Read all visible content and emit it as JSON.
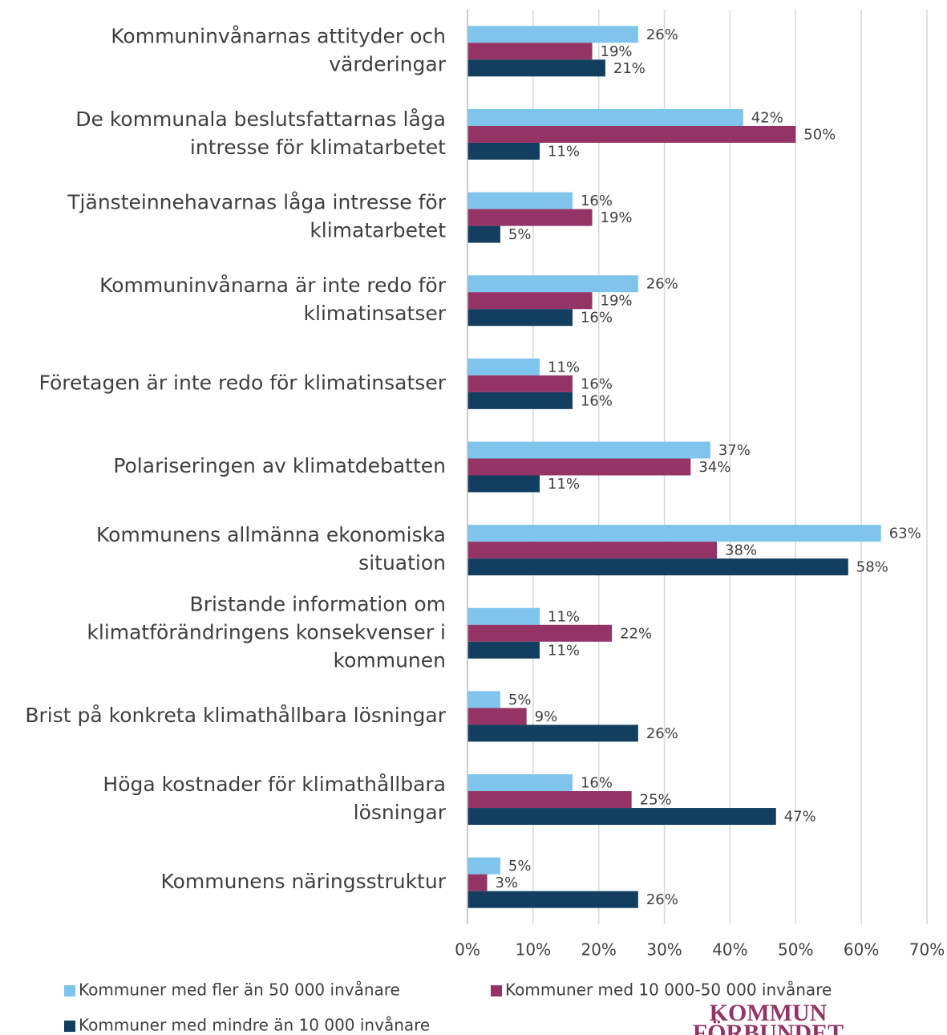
{
  "chart_data": {
    "type": "bar",
    "orientation": "horizontal",
    "categories": [
      "Kommuninvånarnas attityder och värderingar",
      "De kommunala beslutsfattarnas låga intresse för klimatarbetet",
      "Tjänsteinnehavarnas låga intresse för klimatarbetet",
      "Kommuninvånarna är inte redo för klimatinsatser",
      "Företagen är inte redo för klimatinsatser",
      "Polariseringen av klimatdebatten",
      "Kommunens allmänna ekonomiska situation",
      "Bristande information om klimatförändringens konsekvenser i kommunen",
      "Brist på konkreta klimathållbara lösningar",
      "Höga kostnader för klimathållbara lösningar",
      "Kommunens näringsstruktur"
    ],
    "series": [
      {
        "name": "Kommuner med fler än 50 000 invånare",
        "color": "#7fc4ec",
        "values": [
          26,
          42,
          16,
          26,
          11,
          37,
          63,
          11,
          5,
          16,
          5
        ],
        "value_labels": [
          "26%",
          "42%",
          "16%",
          "26%",
          "11%",
          "37%",
          "63%",
          "11%",
          "5%",
          "16%",
          "5%"
        ]
      },
      {
        "name": "Kommuner med 10 000-50 000 invånare",
        "color": "#943466",
        "values": [
          19,
          50,
          19,
          19,
          16,
          34,
          38,
          22,
          9,
          25,
          3
        ],
        "value_labels": [
          "19%",
          "50%",
          "19%",
          "19%",
          "16%",
          "34%",
          "38%",
          "22%",
          "9%",
          "25%",
          "3%"
        ]
      },
      {
        "name": "Kommuner med mindre än 10 000 invånare",
        "color": "#123e60",
        "values": [
          21,
          11,
          5,
          16,
          16,
          11,
          58,
          11,
          26,
          47,
          26
        ],
        "value_labels": [
          "21%",
          "11%",
          "5%",
          "16%",
          "16%",
          "11%",
          "58%",
          "11%",
          "26%",
          "47%",
          "26%"
        ]
      }
    ],
    "xlim": [
      0,
      70
    ],
    "xticks": [
      {
        "value": 0,
        "label": "0%"
      },
      {
        "value": 10,
        "label": "10%"
      },
      {
        "value": 20,
        "label": "20%"
      },
      {
        "value": 30,
        "label": "30%"
      },
      {
        "value": 40,
        "label": "40%"
      },
      {
        "value": 50,
        "label": "50%"
      },
      {
        "value": 60,
        "label": "60%"
      },
      {
        "value": 70,
        "label": "70%"
      }
    ],
    "grid": true,
    "legend": "bottom"
  },
  "logo": [
    "KOMMUN",
    "FÖRBUNDET"
  ]
}
